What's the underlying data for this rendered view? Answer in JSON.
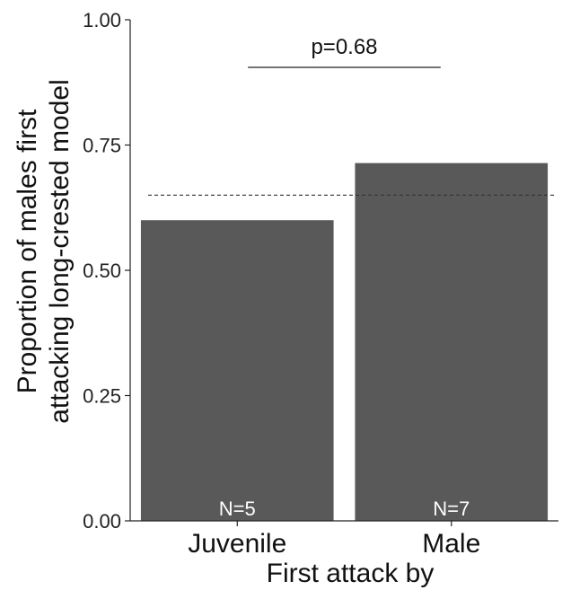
{
  "chart_data": {
    "type": "bar",
    "categories": [
      "Juvenile",
      "Male"
    ],
    "values": [
      0.6,
      0.714
    ],
    "bar_labels": [
      "N=5",
      "N=7"
    ],
    "xlabel": "First attack by",
    "ylabel_lines": [
      "Proportion of males first",
      "attacking long-crested model"
    ],
    "ylim": [
      0,
      1
    ],
    "yticks": [
      0,
      0.25,
      0.5,
      0.75,
      1.0
    ],
    "ytick_labels": [
      "0.00",
      "0.25",
      "0.50",
      "0.75",
      "1.00"
    ],
    "reference_line": 0.65,
    "significance": {
      "text": "p=0.68"
    },
    "grid": false,
    "bar_color": "#595959"
  }
}
